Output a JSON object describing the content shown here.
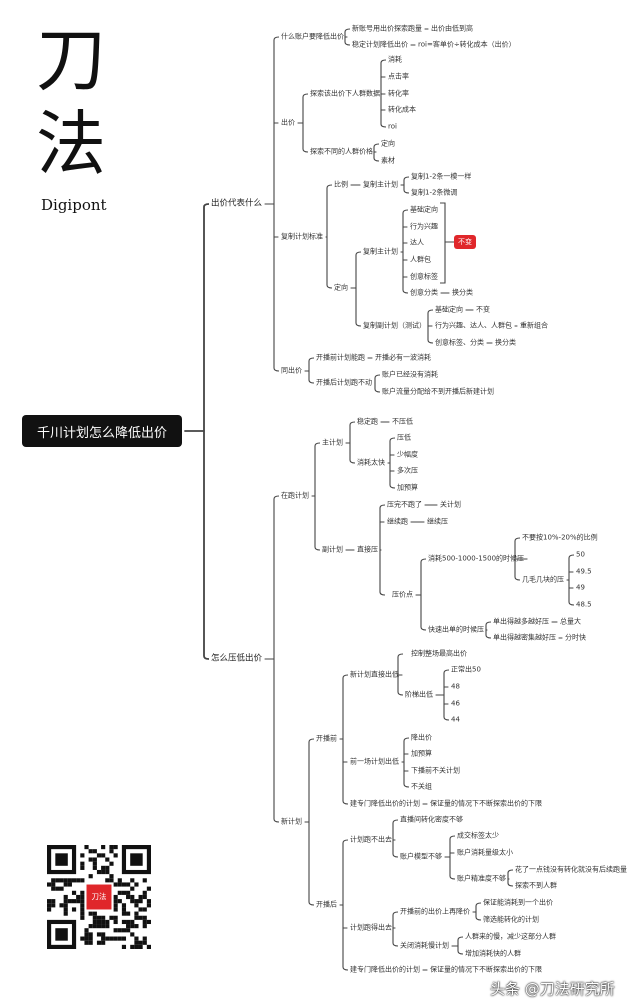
{
  "logo": {
    "char1": "刀",
    "char2": "法",
    "brand": "Digipont"
  },
  "qr": {
    "center_text": "刀法",
    "center_color": "#e0272b"
  },
  "watermark": "头条 @刀法研究所",
  "colors": {
    "line": "#444444",
    "root_bg": "#111111",
    "badge": "#e0272b"
  },
  "badge": {
    "label": "不变"
  },
  "mindmap": {
    "label": "千川计划怎么降低出价",
    "children": [
      {
        "label": "出价代表什么",
        "children": [
          {
            "label": "什么账户要降低出价",
            "children": [
              {
                "label": "新账号用出价探索跑量",
                "children": [
                  {
                    "label": "出价由低到高"
                  }
                ]
              },
              {
                "label": "稳定计划降低出价",
                "children": [
                  {
                    "label": "roi=客单价÷转化成本（出价）"
                  }
                ]
              }
            ]
          },
          {
            "label": "出价",
            "children": [
              {
                "label": "探索该出价下人群数据",
                "children": [
                  {
                    "label": "消耗"
                  },
                  {
                    "label": "点击率"
                  },
                  {
                    "label": "转化率"
                  },
                  {
                    "label": "转化成本"
                  },
                  {
                    "label": "roi"
                  }
                ]
              },
              {
                "label": "探索不同的人群价格",
                "children": [
                  {
                    "label": "定向"
                  },
                  {
                    "label": "素材"
                  }
                ]
              }
            ]
          },
          {
            "label": "复制计划标准",
            "children": [
              {
                "label": "比例",
                "children": [
                  {
                    "label": "复制主计划",
                    "children": [
                      {
                        "label": "复制1-2条一模一样"
                      },
                      {
                        "label": "复制1-2条微调"
                      }
                    ]
                  }
                ]
              },
              {
                "label": "定向",
                "children": [
                  {
                    "label": "复制主计划",
                    "children": [
                      {
                        "label": "基础定向"
                      },
                      {
                        "label": "行为兴趣"
                      },
                      {
                        "label": "达人"
                      },
                      {
                        "label": "人群包"
                      },
                      {
                        "label": "创意标签"
                      },
                      {
                        "label": "创意分类",
                        "children": [
                          {
                            "label": "换分类"
                          }
                        ]
                      }
                    ]
                  },
                  {
                    "label": "复制副计划（测试）",
                    "children": [
                      {
                        "label": "基础定向",
                        "children": [
                          {
                            "label": "不变"
                          }
                        ]
                      },
                      {
                        "label": "行为兴趣、达人、人群包",
                        "children": [
                          {
                            "label": "重新组合"
                          }
                        ]
                      },
                      {
                        "label": "创意标签、分类",
                        "children": [
                          {
                            "label": "换分类"
                          }
                        ]
                      }
                    ]
                  }
                ]
              }
            ]
          },
          {
            "label": "同出价",
            "children": [
              {
                "label": "开播前计划能跑",
                "children": [
                  {
                    "label": "开播必有一波消耗"
                  }
                ]
              },
              {
                "label": "开播后计划跑不动",
                "children": [
                  {
                    "label": "账户已经没有消耗"
                  },
                  {
                    "label": "账户流量分配给不到开播后新建计划"
                  }
                ]
              }
            ]
          }
        ]
      },
      {
        "label": "怎么压低出价",
        "children": [
          {
            "label": "在跑计划",
            "children": [
              {
                "label": "主计划",
                "children": [
                  {
                    "label": "稳定跑",
                    "children": [
                      {
                        "label": "不压低"
                      }
                    ]
                  },
                  {
                    "label": "消耗太快",
                    "children": [
                      {
                        "label": "压低"
                      },
                      {
                        "label": "少幅度"
                      },
                      {
                        "label": "多次压"
                      },
                      {
                        "label": "加预算"
                      }
                    ]
                  }
                ]
              },
              {
                "label": "副计划",
                "children": [
                  {
                    "label": "直接压",
                    "children": [
                      {
                        "label": "压完不跑了",
                        "children": [
                          {
                            "label": "关计划"
                          }
                        ]
                      },
                      {
                        "label": "继续跑",
                        "children": [
                          {
                            "label": "继续压"
                          }
                        ]
                      },
                      {
                        "label": "压价点",
                        "children": [
                          {
                            "label": "消耗500-1000-1500的时候压",
                            "children": [
                              {
                                "label": "不要按10%-20%的比例"
                              },
                              {
                                "label": "几毛几块的压",
                                "children": [
                                  {
                                    "label": "50"
                                  },
                                  {
                                    "label": "49.5"
                                  },
                                  {
                                    "label": "49"
                                  },
                                  {
                                    "label": "48.5"
                                  }
                                ]
                              }
                            ]
                          },
                          {
                            "label": "快速出单的时候压",
                            "children": [
                              {
                                "label": "单出得越多越好压",
                                "children": [
                                  {
                                    "label": "总量大"
                                  }
                                ]
                              },
                              {
                                "label": "单出得越密集越好压",
                                "children": [
                                  {
                                    "label": "分时快"
                                  }
                                ]
                              }
                            ]
                          }
                        ]
                      }
                    ]
                  }
                ]
              }
            ]
          },
          {
            "label": "新计划",
            "children": [
              {
                "label": "开播前",
                "children": [
                  {
                    "label": "新计划直接出低",
                    "children": [
                      {
                        "label": "控制整场最高出价"
                      },
                      {
                        "label": "阶梯出低",
                        "children": [
                          {
                            "label": "正常出50"
                          },
                          {
                            "label": "48"
                          },
                          {
                            "label": "46"
                          },
                          {
                            "label": "44"
                          }
                        ]
                      }
                    ]
                  },
                  {
                    "label": "前一场计划出低",
                    "children": [
                      {
                        "label": "降出价"
                      },
                      {
                        "label": "加预算"
                      },
                      {
                        "label": "下播前不关计划"
                      },
                      {
                        "label": "不关组"
                      }
                    ]
                  },
                  {
                    "label": "建专门降低出价的计划",
                    "children": [
                      {
                        "label": "保证量的情况下不断探索出价的下限"
                      }
                    ]
                  }
                ]
              },
              {
                "label": "开播后",
                "children": [
                  {
                    "label": "计划跑不出去",
                    "children": [
                      {
                        "label": "直播间转化密度不够"
                      },
                      {
                        "label": "账户模型不够",
                        "children": [
                          {
                            "label": "成交标签太少"
                          },
                          {
                            "label": "账户消耗量级太小"
                          },
                          {
                            "label": "账户精准度不够",
                            "children": [
                              {
                                "label": "花了一点钱没有转化就没有后续跑量"
                              },
                              {
                                "label": "探索不到人群"
                              }
                            ]
                          }
                        ]
                      }
                    ]
                  },
                  {
                    "label": "计划跑得出去",
                    "children": [
                      {
                        "label": "开播前的出价上再降价",
                        "children": [
                          {
                            "label": "保证能消耗到一个出价"
                          },
                          {
                            "label": "筛选能转化的计划"
                          }
                        ]
                      },
                      {
                        "label": "关闭消耗慢计划",
                        "children": [
                          {
                            "label": "人群来的慢，减少这部分人群"
                          },
                          {
                            "label": "增加消耗快的人群"
                          }
                        ]
                      }
                    ]
                  },
                  {
                    "label": "建专门降低出价的计划",
                    "children": [
                      {
                        "label": "保证量的情况下不断探索出价的下限"
                      }
                    ]
                  }
                ]
              }
            ]
          }
        ]
      }
    ]
  }
}
